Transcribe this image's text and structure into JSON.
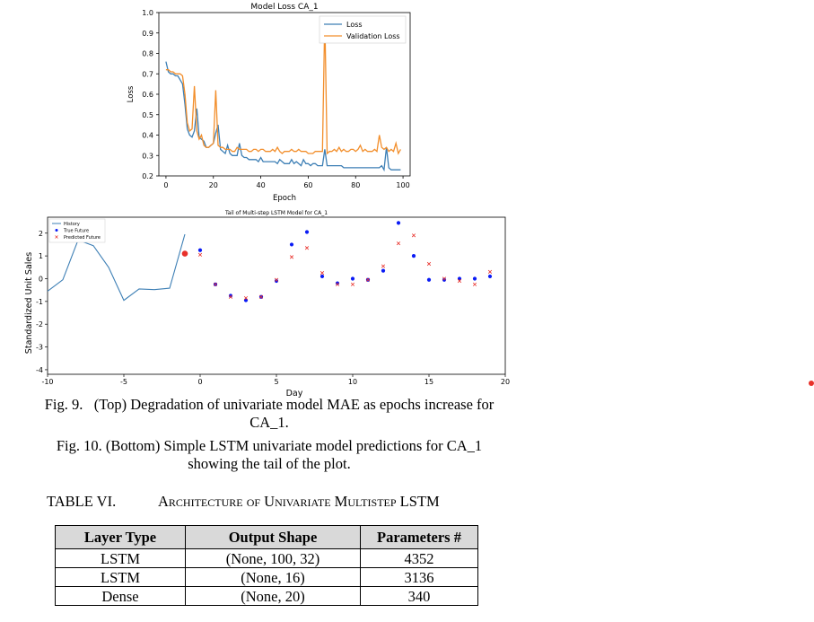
{
  "chart_data": [
    {
      "type": "line",
      "title": "Model Loss CA_1",
      "xlabel": "Epoch",
      "ylabel": "Loss",
      "xlim": [
        -3,
        103
      ],
      "ylim": [
        0.2,
        1.0
      ],
      "xticks": [
        0,
        20,
        40,
        60,
        80,
        100
      ],
      "yticks": [
        0.2,
        0.3,
        0.4,
        0.5,
        0.6,
        0.7,
        0.8,
        0.9,
        1.0
      ],
      "legend_position": "top-right",
      "series": [
        {
          "name": "Loss",
          "color": "#3d7fb5",
          "x": [
            0,
            1,
            2,
            3,
            4,
            5,
            6,
            7,
            8,
            9,
            10,
            11,
            12,
            13,
            14,
            15,
            16,
            17,
            18,
            19,
            20,
            21,
            22,
            23,
            24,
            25,
            26,
            27,
            28,
            29,
            30,
            31,
            32,
            33,
            34,
            35,
            36,
            37,
            38,
            39,
            40,
            41,
            42,
            43,
            44,
            45,
            46,
            47,
            48,
            49,
            50,
            51,
            52,
            53,
            54,
            55,
            56,
            57,
            58,
            59,
            60,
            61,
            62,
            63,
            64,
            65,
            66,
            67,
            68,
            69,
            70,
            71,
            72,
            73,
            74,
            75,
            76,
            77,
            78,
            79,
            80,
            81,
            82,
            83,
            84,
            85,
            86,
            87,
            88,
            89,
            90,
            91,
            92,
            93,
            94,
            95,
            96,
            97,
            98,
            99
          ],
          "y": [
            0.76,
            0.71,
            0.7,
            0.7,
            0.69,
            0.69,
            0.67,
            0.65,
            0.55,
            0.43,
            0.4,
            0.39,
            0.42,
            0.53,
            0.39,
            0.38,
            0.37,
            0.34,
            0.34,
            0.35,
            0.36,
            0.41,
            0.45,
            0.33,
            0.32,
            0.31,
            0.35,
            0.31,
            0.3,
            0.3,
            0.3,
            0.36,
            0.3,
            0.29,
            0.29,
            0.28,
            0.28,
            0.28,
            0.28,
            0.27,
            0.29,
            0.27,
            0.27,
            0.27,
            0.27,
            0.27,
            0.27,
            0.26,
            0.28,
            0.27,
            0.26,
            0.26,
            0.26,
            0.28,
            0.26,
            0.27,
            0.26,
            0.25,
            0.28,
            0.26,
            0.26,
            0.25,
            0.26,
            0.26,
            0.25,
            0.25,
            0.25,
            0.33,
            0.25,
            0.25,
            0.25,
            0.25,
            0.25,
            0.25,
            0.25,
            0.24,
            0.24,
            0.24,
            0.24,
            0.24,
            0.24,
            0.24,
            0.24,
            0.24,
            0.24,
            0.24,
            0.24,
            0.24,
            0.24,
            0.24,
            0.24,
            0.25,
            0.23,
            0.34,
            0.24,
            0.23,
            0.23,
            0.23,
            0.23,
            0.23
          ]
        },
        {
          "name": "Validation Loss",
          "color": "#f28e2b",
          "x": [
            0,
            1,
            2,
            3,
            4,
            5,
            6,
            7,
            8,
            9,
            10,
            11,
            12,
            13,
            14,
            15,
            16,
            17,
            18,
            19,
            20,
            21,
            22,
            23,
            24,
            25,
            26,
            27,
            28,
            29,
            30,
            31,
            32,
            33,
            34,
            35,
            36,
            37,
            38,
            39,
            40,
            41,
            42,
            43,
            44,
            45,
            46,
            47,
            48,
            49,
            50,
            51,
            52,
            53,
            54,
            55,
            56,
            57,
            58,
            59,
            60,
            61,
            62,
            63,
            64,
            65,
            66,
            67,
            68,
            69,
            70,
            71,
            72,
            73,
            74,
            75,
            76,
            77,
            78,
            79,
            80,
            81,
            82,
            83,
            84,
            85,
            86,
            87,
            88,
            89,
            90,
            91,
            92,
            93,
            94,
            95,
            96,
            97,
            98,
            99
          ],
          "y": [
            0.72,
            0.72,
            0.71,
            0.71,
            0.7,
            0.7,
            0.7,
            0.69,
            0.6,
            0.46,
            0.42,
            0.43,
            0.64,
            0.42,
            0.38,
            0.4,
            0.35,
            0.34,
            0.34,
            0.35,
            0.36,
            0.62,
            0.35,
            0.34,
            0.34,
            0.33,
            0.33,
            0.33,
            0.32,
            0.32,
            0.34,
            0.33,
            0.33,
            0.33,
            0.33,
            0.32,
            0.32,
            0.33,
            0.33,
            0.32,
            0.33,
            0.33,
            0.32,
            0.32,
            0.32,
            0.33,
            0.32,
            0.34,
            0.32,
            0.31,
            0.32,
            0.32,
            0.32,
            0.33,
            0.32,
            0.32,
            0.33,
            0.32,
            0.32,
            0.32,
            0.31,
            0.31,
            0.31,
            0.32,
            0.32,
            0.32,
            0.32,
            0.98,
            0.31,
            0.32,
            0.32,
            0.33,
            0.32,
            0.34,
            0.32,
            0.33,
            0.32,
            0.32,
            0.33,
            0.33,
            0.32,
            0.33,
            0.35,
            0.32,
            0.33,
            0.32,
            0.32,
            0.32,
            0.33,
            0.32,
            0.4,
            0.34,
            0.33,
            0.34,
            0.32,
            0.33,
            0.32,
            0.36,
            0.31,
            0.33
          ]
        }
      ]
    },
    {
      "type": "line",
      "title": "Tail of Multi-step LSTM Model for CA_1",
      "xlabel": "Day",
      "ylabel": "Standardized Unit Sales",
      "xlim": [
        -10,
        20
      ],
      "ylim": [
        -4.2,
        2.7
      ],
      "xticks": [
        -10,
        -5,
        0,
        5,
        10,
        15,
        20
      ],
      "yticks": [
        -4,
        -3,
        -2,
        -1,
        0,
        1,
        2
      ],
      "legend_position": "top-left",
      "series": [
        {
          "name": "History",
          "marker": "line",
          "color": "#3d7fb5",
          "x": [
            -10,
            -9,
            -8,
            -7,
            -6,
            -5,
            -4,
            -3,
            -2,
            -1
          ],
          "y": [
            -0.55,
            -0.05,
            1.7,
            1.45,
            0.5,
            -0.95,
            -0.45,
            -0.48,
            -0.42,
            1.95
          ]
        },
        {
          "name": "True Future",
          "marker": "dot",
          "color": "#0a1bf5",
          "x": [
            0,
            1,
            2,
            3,
            4,
            5,
            6,
            7,
            8,
            9,
            10,
            11,
            12,
            13,
            14,
            15,
            16,
            17,
            18,
            19
          ],
          "y": [
            1.25,
            -0.25,
            -0.75,
            -0.95,
            -0.8,
            -0.1,
            1.5,
            2.05,
            0.1,
            -0.2,
            0.0,
            -0.05,
            0.35,
            2.45,
            1.0,
            -0.05,
            -0.05,
            0.0,
            0.0,
            0.1
          ]
        },
        {
          "name": "Predicted Future",
          "marker": "x",
          "color": "#e8302a",
          "x": [
            0,
            1,
            2,
            3,
            4,
            5,
            6,
            7,
            8,
            9,
            10,
            11,
            12,
            13,
            14,
            15,
            16,
            17,
            18,
            19
          ],
          "y": [
            1.05,
            -0.25,
            -0.8,
            -0.85,
            -0.8,
            -0.05,
            0.95,
            1.35,
            0.25,
            -0.25,
            -0.25,
            -0.05,
            0.55,
            1.55,
            1.9,
            0.65,
            0.0,
            -0.1,
            -0.25,
            0.3
          ]
        },
        {
          "name": "",
          "marker": "big-dot",
          "color": "#e8302a",
          "x": [
            -1
          ],
          "y": [
            1.1
          ]
        }
      ]
    }
  ],
  "captions": {
    "fig9_line1": "Fig. 9.   (Top) Degradation of univariate model MAE as epochs increase for",
    "fig9_line2": "CA_1.",
    "fig10_line1": "Fig. 10. (Bottom) Simple LSTM univariate model predictions for CA_1",
    "fig10_line2": "showing the tail of the plot."
  },
  "table": {
    "number": "TABLE VI.",
    "title": "Architecture of Univariate Multistep LSTM",
    "headers": [
      "Layer Type",
      "Output Shape",
      "Parameters #"
    ],
    "rows": [
      [
        "LSTM",
        "(None, 100, 32)",
        "4352"
      ],
      [
        "LSTM",
        "(None, 16)",
        "3136"
      ],
      [
        "Dense",
        "(None, 20)",
        "340"
      ]
    ]
  }
}
